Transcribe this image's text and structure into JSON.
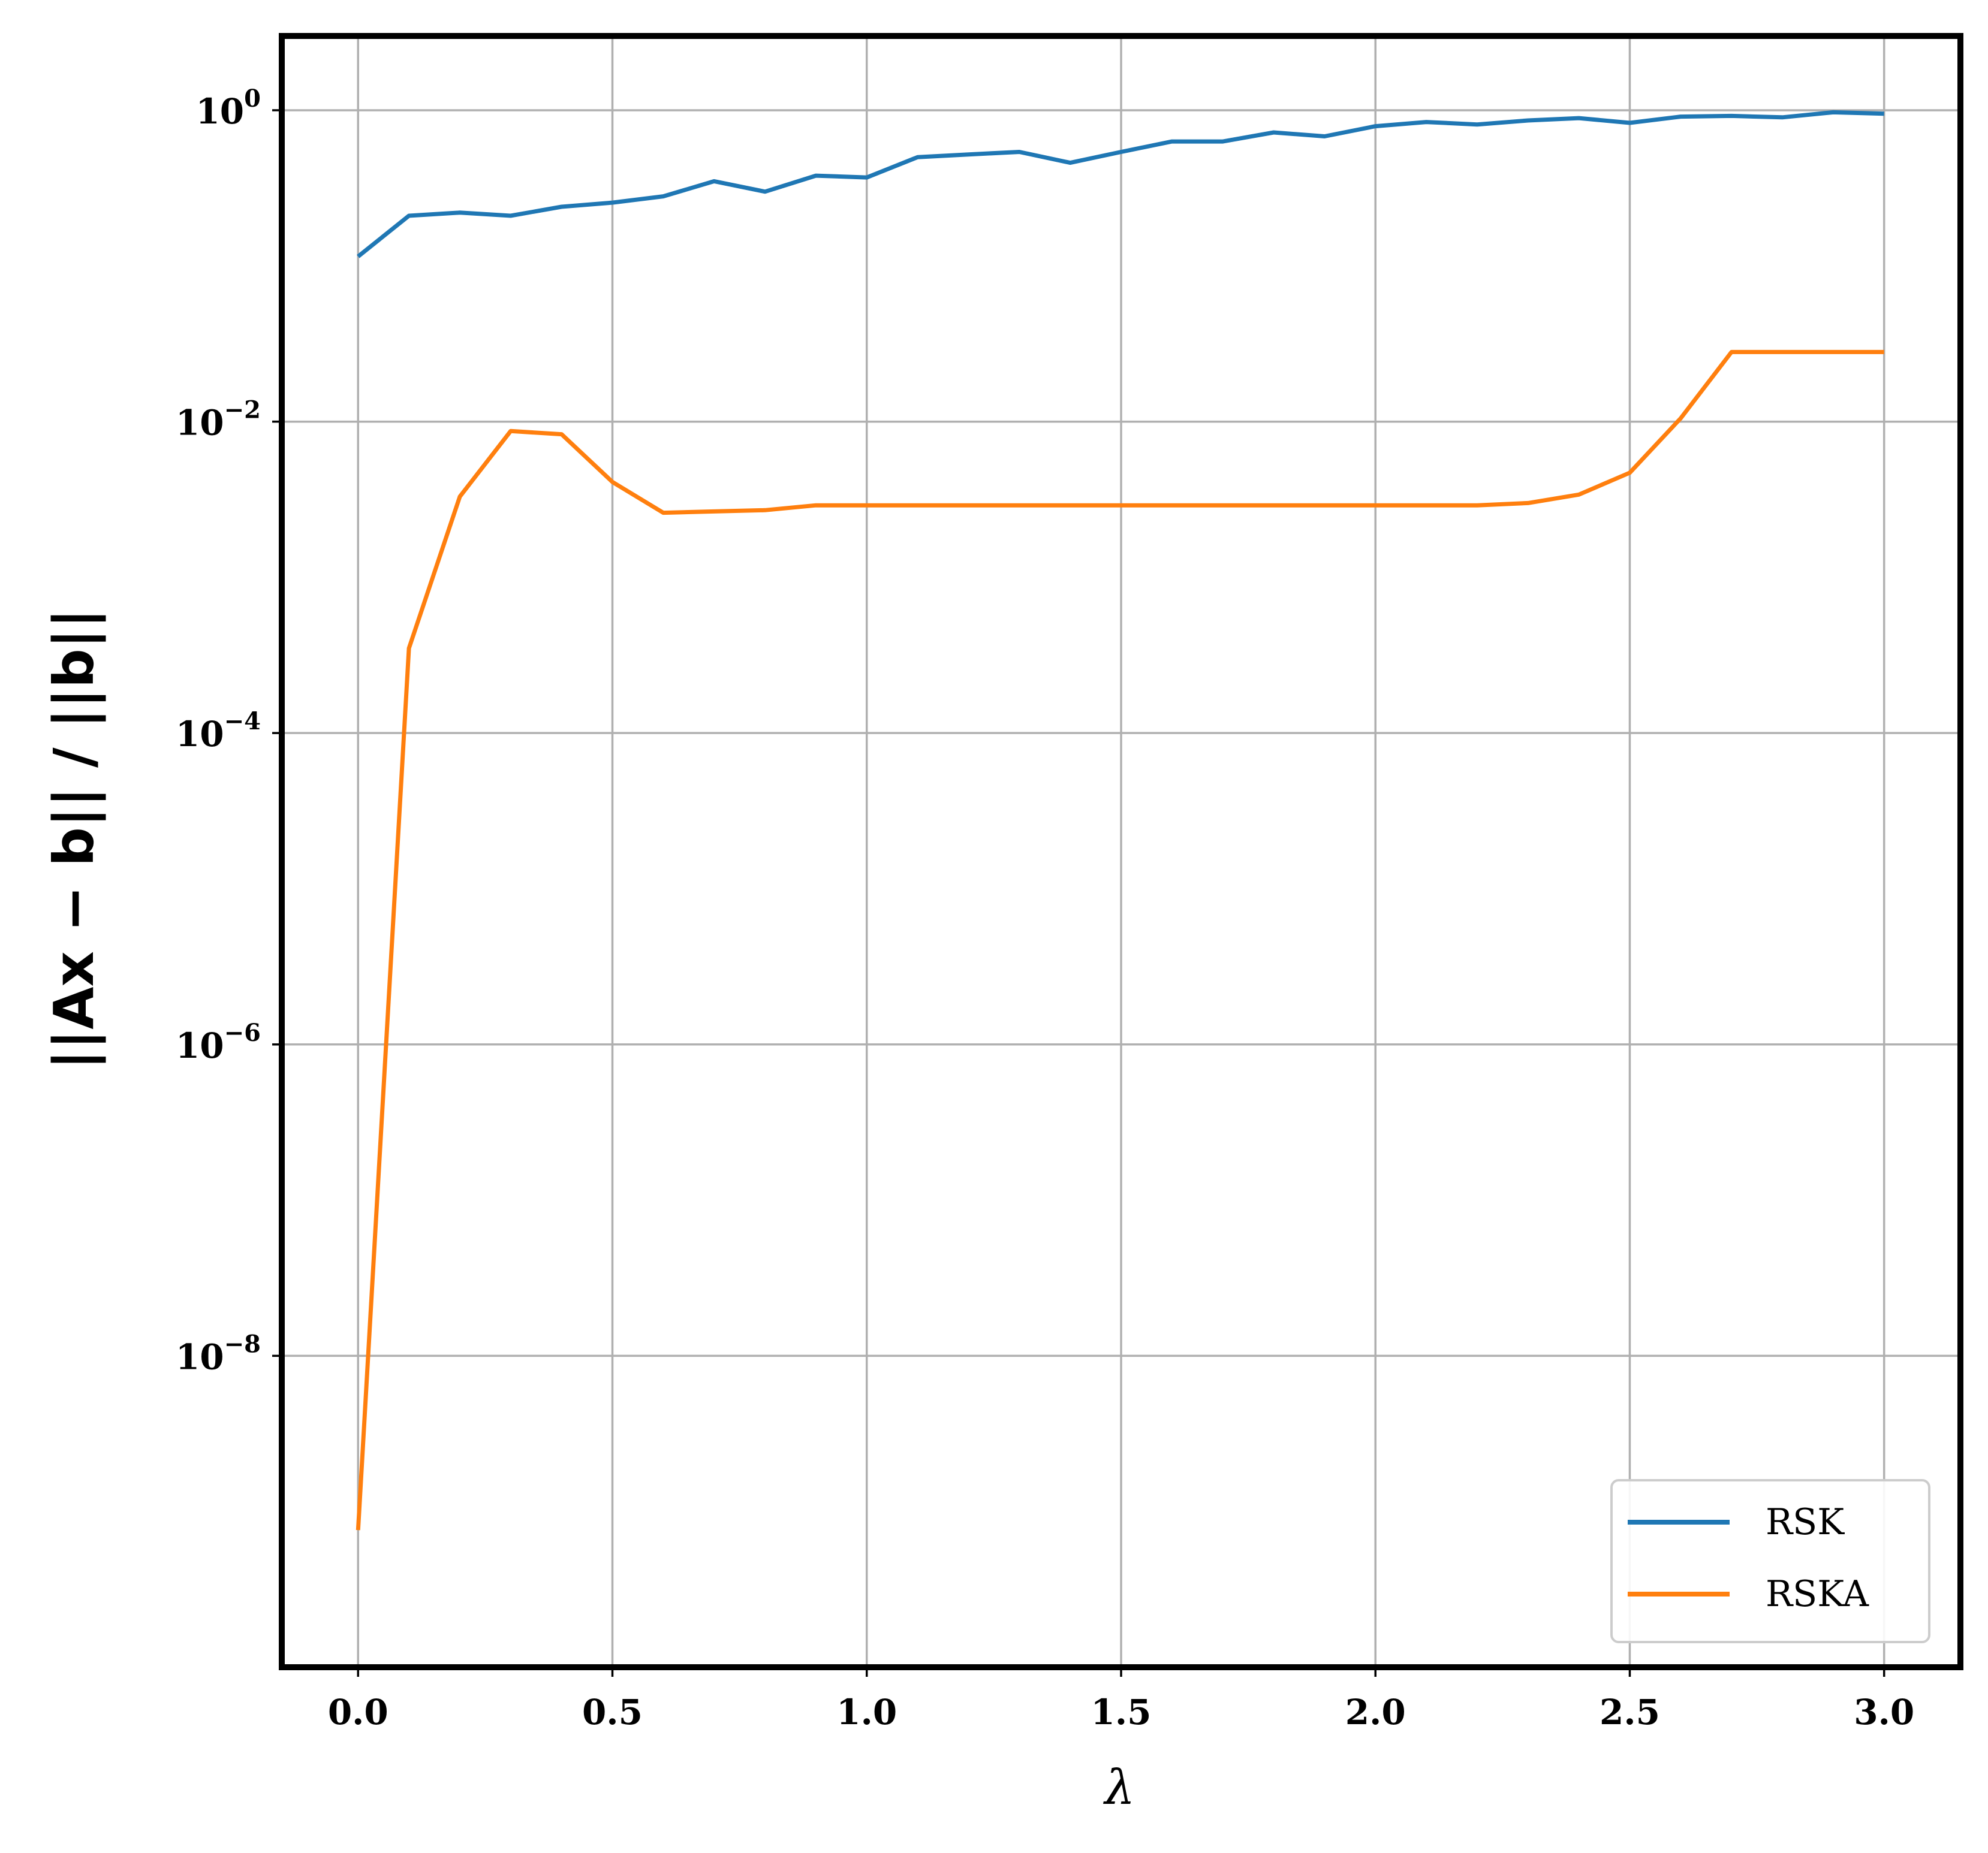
{
  "chart_data": {
    "type": "line",
    "xlabel": "λ",
    "ylabel": "||Ax − b|| / ||b||",
    "yscale": "log",
    "xlim": [
      -0.15,
      3.15
    ],
    "ylim": [
      1e-10,
      3
    ],
    "xticks": [
      0.0,
      0.5,
      1.0,
      1.5,
      2.0,
      2.5,
      3.0
    ],
    "xtick_labels": [
      "0.0",
      "0.5",
      "1.0",
      "1.5",
      "2.0",
      "2.5",
      "3.0"
    ],
    "yticks": [
      {
        "value": 1,
        "base": "10",
        "exp": "0"
      },
      {
        "value": 0.01,
        "base": "10",
        "exp": "−2"
      },
      {
        "value": 0.0001,
        "base": "10",
        "exp": "−4"
      },
      {
        "value": 1e-06,
        "base": "10",
        "exp": "−6"
      },
      {
        "value": 1e-08,
        "base": "10",
        "exp": "−8"
      }
    ],
    "grid": true,
    "legend_position": "lower right",
    "x": [
      0.0,
      0.1,
      0.2,
      0.3,
      0.4,
      0.5,
      0.6,
      0.7,
      0.8,
      0.9,
      1.0,
      1.1,
      1.2,
      1.3,
      1.4,
      1.5,
      1.6,
      1.7,
      1.8,
      1.9,
      2.0,
      2.1,
      2.2,
      2.3,
      2.4,
      2.5,
      2.6,
      2.7,
      2.8,
      2.9,
      3.0
    ],
    "series": [
      {
        "name": "RSK",
        "color": "#1f77b4",
        "values": [
          0.115,
          0.21,
          0.22,
          0.21,
          0.24,
          0.255,
          0.28,
          0.35,
          0.3,
          0.38,
          0.37,
          0.5,
          0.52,
          0.54,
          0.46,
          0.54,
          0.63,
          0.63,
          0.72,
          0.68,
          0.79,
          0.84,
          0.81,
          0.86,
          0.89,
          0.83,
          0.91,
          0.92,
          0.9,
          0.97,
          0.95
        ]
      },
      {
        "name": "RSKA",
        "color": "#ff7f0e",
        "values": [
          7.6e-10,
          0.00035,
          0.0033,
          0.0087,
          0.0083,
          0.0041,
          0.0026,
          0.00265,
          0.0027,
          0.0029,
          0.0029,
          0.0029,
          0.0029,
          0.0029,
          0.0029,
          0.0029,
          0.0029,
          0.0029,
          0.0029,
          0.0029,
          0.0029,
          0.0029,
          0.0029,
          0.003,
          0.0034,
          0.0047,
          0.0105,
          0.028,
          0.028,
          0.028,
          0.028
        ]
      }
    ]
  }
}
